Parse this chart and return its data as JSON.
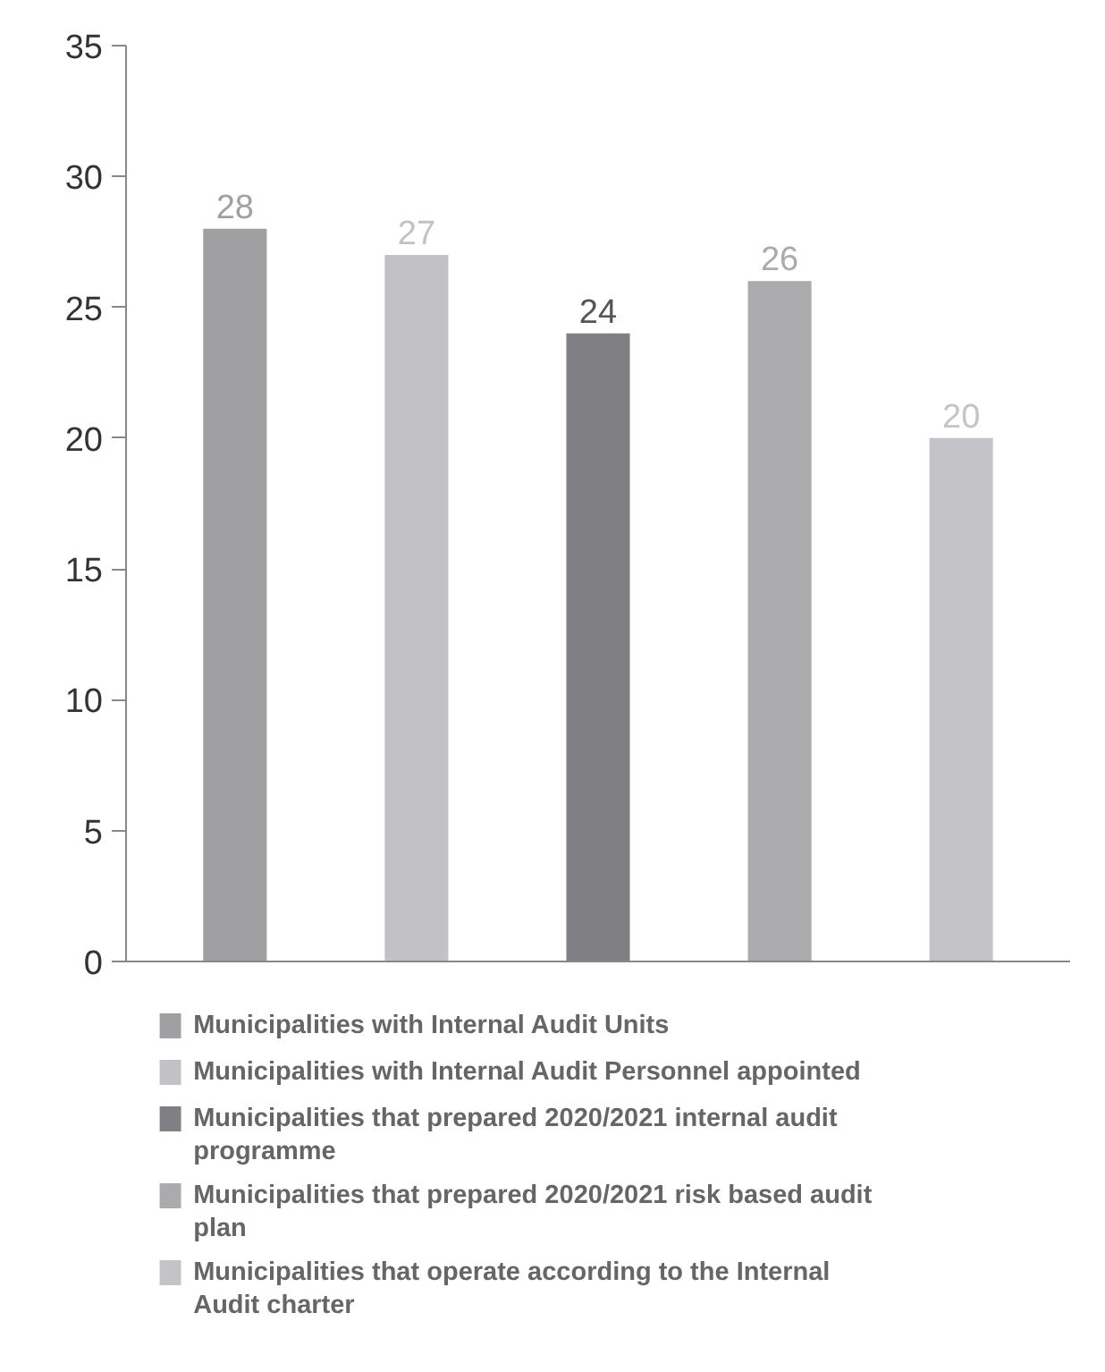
{
  "chart_data": {
    "type": "bar",
    "categories": [
      null,
      null,
      null,
      null,
      null
    ],
    "series": [
      {
        "name": "Municipalities with Internal Audit Units",
        "color": "#a0a0a3",
        "values": [
          28,
          null,
          null,
          null,
          null
        ]
      },
      {
        "name": "Municipalities with Internal Audit Personnel appointed",
        "color": "#c2c2c6",
        "values": [
          null,
          27,
          null,
          null,
          null
        ]
      },
      {
        "name": "Municipalities that prepared 2020/2021 internal audit programme",
        "color": "#808084",
        "values": [
          null,
          null,
          24,
          null,
          null
        ]
      },
      {
        "name": "Municipalities that prepared 2020/2021 risk based audit plan",
        "color": "#ababae",
        "values": [
          null,
          null,
          null,
          26,
          null
        ]
      },
      {
        "name": "Municipalities that operate according to the Internal Audit charter",
        "color": "#c4c4c8",
        "values": [
          null,
          null,
          null,
          null,
          20
        ]
      }
    ],
    "ylim": [
      0,
      35
    ],
    "yticks": [
      0,
      5,
      10,
      15,
      20,
      25,
      30,
      35
    ],
    "data_labels": true,
    "grid": false,
    "legend": "bottom"
  }
}
